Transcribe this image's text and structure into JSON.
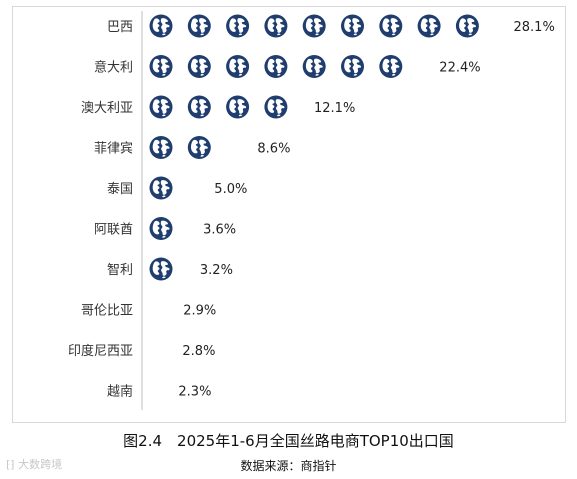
{
  "caption": "图2.4　2025年1-6月全国丝路电商TOP10出口国",
  "source": "数据来源：商指针",
  "watermark": "⁅⁆ 大数跨境",
  "colors": {
    "icon": "#1f3d6e",
    "axis": "#bfbfbf"
  },
  "icon_name": "globe-icon",
  "chart_data": {
    "type": "pictograph",
    "categories": [
      "巴西",
      "意大利",
      "澳大利亚",
      "菲律宾",
      "泰国",
      "阿联酋",
      "智利",
      "哥伦比亚",
      "印度尼西亚",
      "越南"
    ],
    "values": [
      28.1,
      22.4,
      12.1,
      8.6,
      5.0,
      3.6,
      3.2,
      2.9,
      2.8,
      2.3
    ],
    "value_labels": [
      "28.1%",
      "22.4%",
      "12.1%",
      "8.6%",
      "5.0%",
      "3.6%",
      "3.2%",
      "2.9%",
      "2.8%",
      "2.3%"
    ],
    "unit": "%",
    "units_per_icon": 3.0
  }
}
